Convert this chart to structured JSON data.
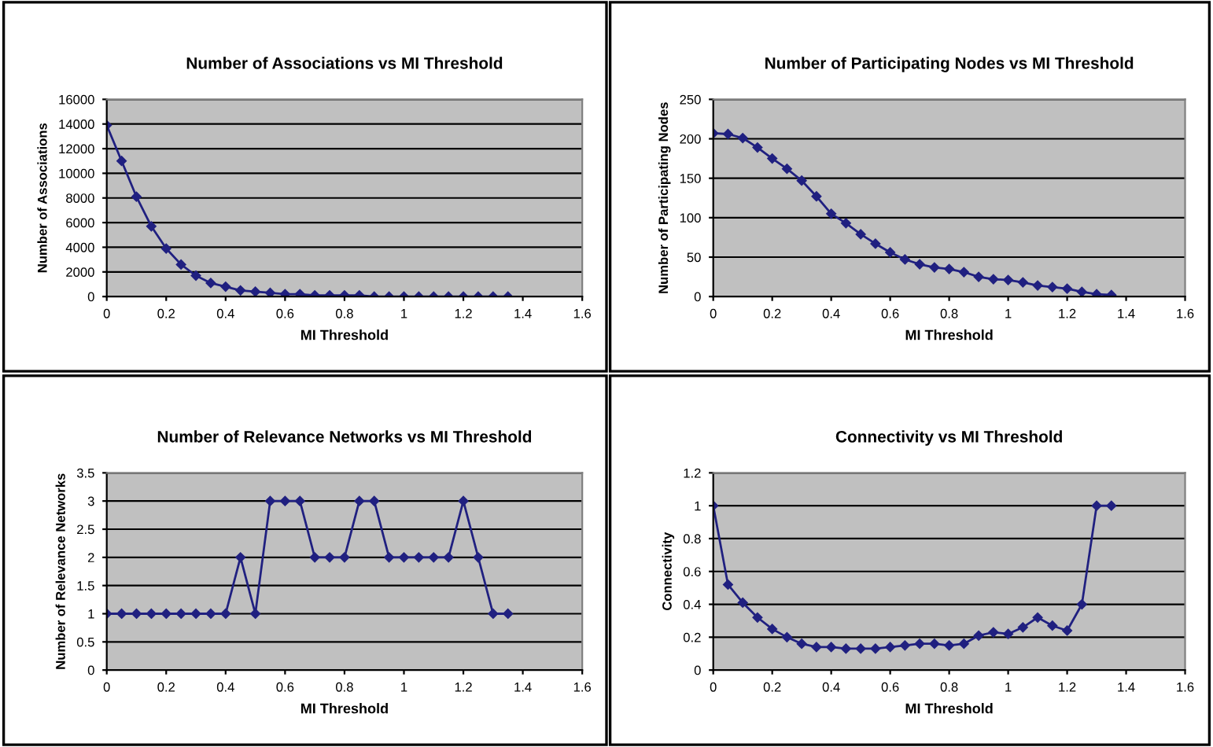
{
  "chart_data": [
    {
      "type": "line",
      "title": "Number of Associations vs MI Threshold",
      "xlabel": "MI Threshold",
      "ylabel": "Number of Associations",
      "x": [
        0,
        0.05,
        0.1,
        0.15,
        0.2,
        0.25,
        0.3,
        0.35,
        0.4,
        0.45,
        0.5,
        0.55,
        0.6,
        0.65,
        0.7,
        0.75,
        0.8,
        0.85,
        0.9,
        0.95,
        1,
        1.05,
        1.1,
        1.15,
        1.2,
        1.25,
        1.3,
        1.35
      ],
      "series": [
        {
          "color": "#202080",
          "values": [
            13900,
            11000,
            8100,
            5700,
            3900,
            2600,
            1700,
            1100,
            800,
            500,
            400,
            300,
            200,
            200,
            100,
            100,
            100,
            100,
            0,
            0,
            0,
            0,
            0,
            0,
            0,
            0,
            0,
            0
          ]
        }
      ],
      "xlim": [
        0,
        1.6
      ],
      "xticks": [
        0,
        0.2,
        0.4,
        0.6,
        0.8,
        1,
        1.2,
        1.4,
        1.6
      ],
      "ylim": [
        0,
        16000
      ],
      "yticks": [
        0,
        2000,
        4000,
        6000,
        8000,
        10000,
        12000,
        14000,
        16000
      ],
      "grid": "y",
      "marker": "diamond"
    },
    {
      "type": "line",
      "title": "Number of Participating Nodes vs MI Threshold",
      "xlabel": "MI Threshold",
      "ylabel": "Number of Participating Nodes",
      "x": [
        0,
        0.05,
        0.1,
        0.15,
        0.2,
        0.25,
        0.3,
        0.35,
        0.4,
        0.45,
        0.5,
        0.55,
        0.6,
        0.65,
        0.7,
        0.75,
        0.8,
        0.85,
        0.9,
        0.95,
        1,
        1.05,
        1.1,
        1.15,
        1.2,
        1.25,
        1.3,
        1.35
      ],
      "series": [
        {
          "color": "#202080",
          "values": [
            207,
            206,
            201,
            189,
            175,
            162,
            147,
            127,
            105,
            93,
            79,
            67,
            56,
            47,
            41,
            37,
            35,
            31,
            25,
            22,
            21,
            18,
            14,
            12,
            10,
            6,
            3,
            2
          ]
        }
      ],
      "xlim": [
        0,
        1.6
      ],
      "xticks": [
        0,
        0.2,
        0.4,
        0.6,
        0.8,
        1,
        1.2,
        1.4,
        1.6
      ],
      "ylim": [
        0,
        250
      ],
      "yticks": [
        0,
        50,
        100,
        150,
        200,
        250
      ],
      "grid": "y",
      "marker": "diamond"
    },
    {
      "type": "line",
      "title": "Number of Relevance Networks vs MI Threshold",
      "xlabel": "MI Threshold",
      "ylabel": "Number of Relevance Networks",
      "x": [
        0,
        0.05,
        0.1,
        0.15,
        0.2,
        0.25,
        0.3,
        0.35,
        0.4,
        0.45,
        0.5,
        0.55,
        0.6,
        0.65,
        0.7,
        0.75,
        0.8,
        0.85,
        0.9,
        0.95,
        1,
        1.05,
        1.1,
        1.15,
        1.2,
        1.25,
        1.3,
        1.35
      ],
      "series": [
        {
          "color": "#202080",
          "values": [
            1,
            1,
            1,
            1,
            1,
            1,
            1,
            1,
            1,
            2,
            1,
            3,
            3,
            3,
            2,
            2,
            2,
            3,
            3,
            2,
            2,
            2,
            2,
            2,
            3,
            2,
            1,
            1
          ]
        }
      ],
      "xlim": [
        0,
        1.6
      ],
      "xticks": [
        0,
        0.2,
        0.4,
        0.6,
        0.8,
        1,
        1.2,
        1.4,
        1.6
      ],
      "ylim": [
        0,
        3.5
      ],
      "yticks": [
        0,
        0.5,
        1,
        1.5,
        2,
        2.5,
        3,
        3.5
      ],
      "grid": "y",
      "marker": "diamond"
    },
    {
      "type": "line",
      "title": "Connectivity vs MI Threshold",
      "xlabel": "MI Threshold",
      "ylabel": "Connectivity",
      "x": [
        0,
        0.05,
        0.1,
        0.15,
        0.2,
        0.25,
        0.3,
        0.35,
        0.4,
        0.45,
        0.5,
        0.55,
        0.6,
        0.65,
        0.7,
        0.75,
        0.8,
        0.85,
        0.9,
        0.95,
        1,
        1.05,
        1.1,
        1.15,
        1.2,
        1.25,
        1.3,
        1.35
      ],
      "series": [
        {
          "color": "#202080",
          "values": [
            1,
            0.52,
            0.41,
            0.32,
            0.25,
            0.2,
            0.16,
            0.14,
            0.14,
            0.13,
            0.13,
            0.13,
            0.14,
            0.15,
            0.16,
            0.16,
            0.15,
            0.16,
            0.21,
            0.23,
            0.22,
            0.26,
            0.32,
            0.27,
            0.24,
            0.4,
            1,
            1
          ]
        }
      ],
      "xlim": [
        0,
        1.6
      ],
      "xticks": [
        0,
        0.2,
        0.4,
        0.6,
        0.8,
        1,
        1.2,
        1.4,
        1.6
      ],
      "ylim": [
        0,
        1.2
      ],
      "yticks": [
        0,
        0.2,
        0.4,
        0.6,
        0.8,
        1,
        1.2
      ],
      "grid": "y",
      "marker": "diamond"
    }
  ]
}
